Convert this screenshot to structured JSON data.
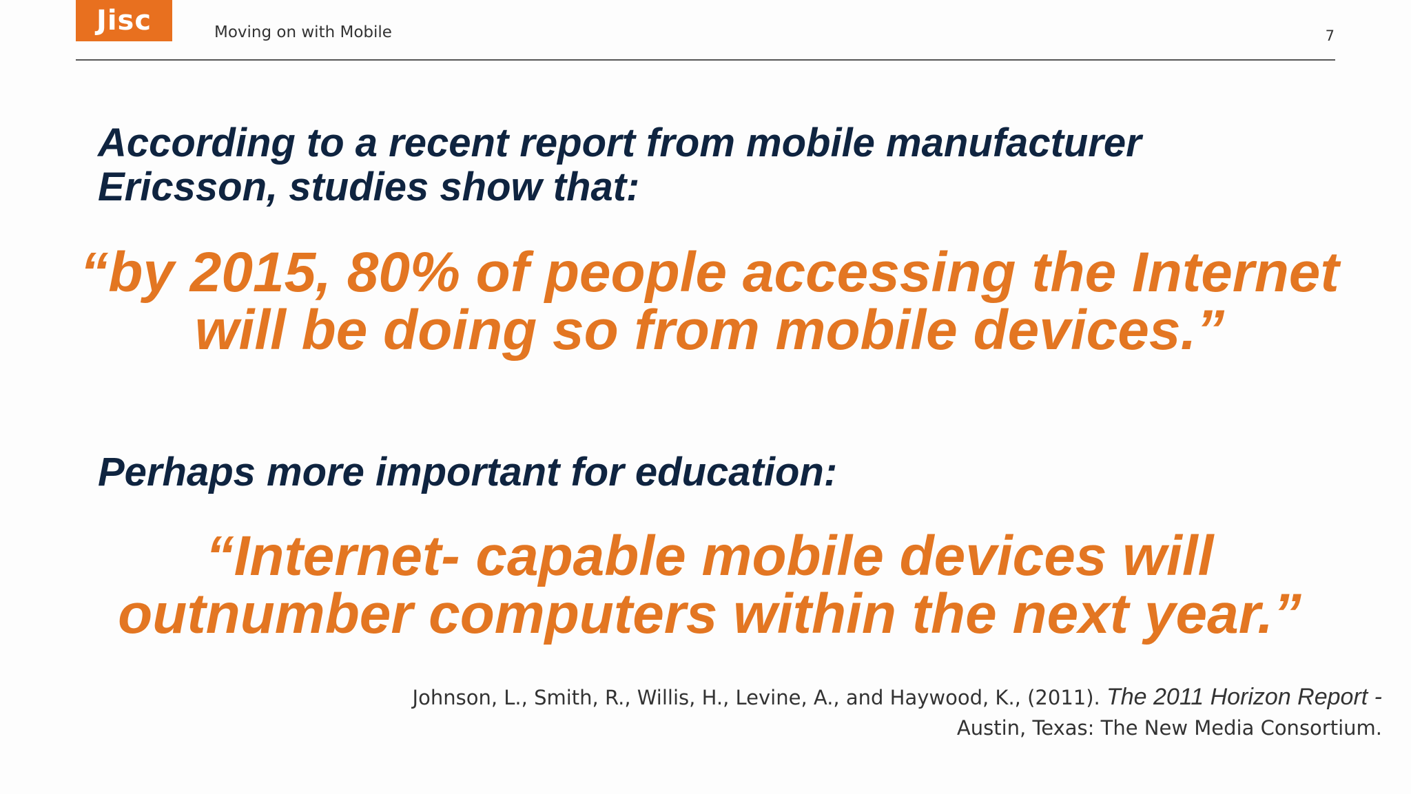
{
  "header": {
    "logo_text": "Jisc",
    "title": "Moving on with Mobile",
    "page_number": "7"
  },
  "body": {
    "lead_1": "According to a recent report from mobile manufacturer Ericsson, studies show that:",
    "quote_1": "“by 2015, 80% of people accessing the Internet will be doing so from mobile devices.”",
    "lead_2": "Perhaps more important for education:",
    "quote_2": "“Internet- capable mobile devices will outnumber computers within the next year.”"
  },
  "citation": {
    "authors": "Johnson, L., Smith, R., Willis, H., Levine, A., and Haywood, K., (2011).",
    "title": "The 2011 Horizon Report -",
    "publisher": "Austin, Texas: The New Media Consortium."
  },
  "colors": {
    "brand_orange": "#e8701f",
    "quote_orange": "#e37622",
    "heading_navy": "#0f2440"
  }
}
